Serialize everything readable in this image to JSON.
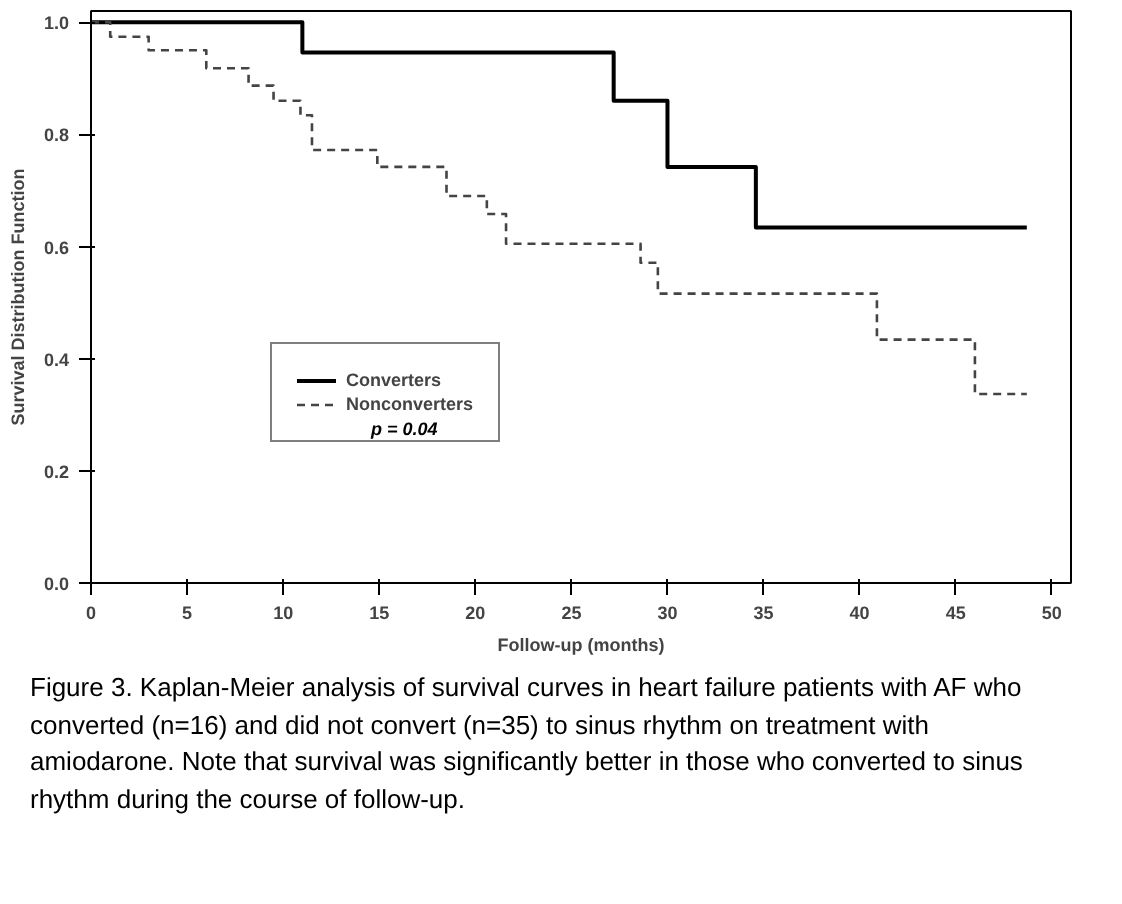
{
  "chart_data": {
    "type": "step",
    "xlabel": "Follow-up (months)",
    "ylabel": "Survival Distribution Function",
    "xlim": [
      0,
      51
    ],
    "ylim": [
      0,
      1.02
    ],
    "xticks": [
      0,
      5,
      10,
      15,
      20,
      25,
      30,
      35,
      40,
      45,
      50
    ],
    "yticks": [
      {
        "value": 0,
        "label": "0.0"
      },
      0.2,
      0.4,
      0.6,
      0.8,
      {
        "value": 1,
        "label": "1.0"
      }
    ],
    "grid": false,
    "legend": "left",
    "series": [
      {
        "name": "Converters",
        "color": "#000000",
        "line_style": "solid",
        "x": [
          0,
          11.0,
          27.2,
          30.0,
          34.6,
          48.7
        ],
        "values": [
          1.0,
          0.946,
          0.86,
          0.742,
          0.634,
          0.634
        ]
      },
      {
        "name": "Nonconverters",
        "color": "#444444",
        "line_style": "dashed",
        "x": [
          0,
          1.0,
          3.0,
          6.0,
          8.2,
          9.5,
          10.9,
          11.5,
          14.9,
          18.5,
          20.6,
          21.6,
          28.6,
          29.5,
          40.9,
          46.0,
          48.7
        ],
        "values": [
          1.0,
          0.974,
          0.95,
          0.918,
          0.887,
          0.86,
          0.834,
          0.772,
          0.742,
          0.69,
          0.658,
          0.605,
          0.571,
          0.516,
          0.434,
          0.337,
          0.337
        ]
      }
    ],
    "annotations": [
      "p = 0.04",
      "Figure 3. Kaplan-Meier analysis of survival curves in heart failure patients with AF who converted (n=16) and did not convert (n=35) to sinus rhythm on treatment with amiodarone. Note that survival was significantly better in those who converted to sinus rhythm during the course of follow-up."
    ]
  }
}
